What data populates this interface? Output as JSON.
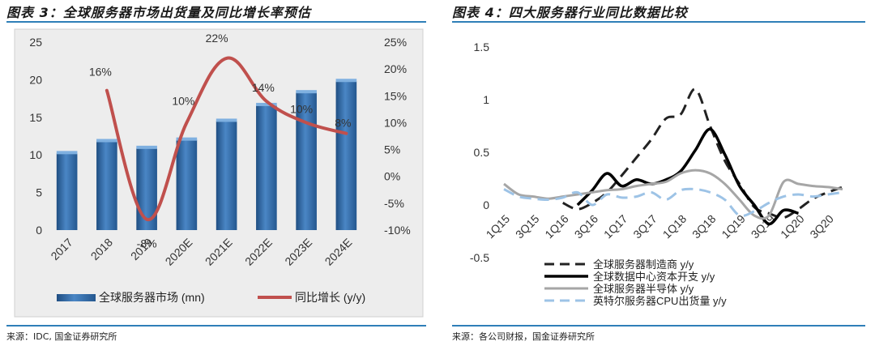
{
  "left": {
    "title": "图表 3：全球服务器市场出货量及同比增长率预估",
    "source": "来源：IDC, 国金证券研究所"
  },
  "right": {
    "title": "图表 4：四大服务器行业同比数据比较",
    "source": "来源：各公司财报，国金证券研究所"
  },
  "colors": {
    "bar": "#2d6aa3",
    "growth_line": "#c0504d",
    "rule": "#2f7fb8"
  },
  "chart_data": [
    {
      "type": "bar",
      "categories": [
        "2017",
        "2018",
        "2019",
        "2020E",
        "2021E",
        "2022E",
        "2023E",
        "2024E"
      ],
      "series": [
        {
          "name": "全球服务器市场 (mn)",
          "type": "bar",
          "axis": "left",
          "values": [
            10.2,
            11.8,
            10.9,
            12.0,
            14.5,
            16.6,
            18.3,
            19.8
          ]
        },
        {
          "name": "同比增长 (y/y)",
          "type": "line",
          "axis": "right",
          "values": [
            null,
            16,
            -8,
            10,
            22,
            14,
            10,
            8
          ]
        }
      ],
      "data_labels": [
        "",
        "16%",
        "-8%",
        "10%",
        "22%",
        "14%",
        "10%",
        "8%"
      ],
      "y_left": {
        "ylim": [
          0,
          25
        ],
        "ticks": [
          "0",
          "5",
          "10",
          "15",
          "20",
          "25"
        ]
      },
      "y_right": {
        "ylim": [
          -10,
          25
        ],
        "ticks": [
          "-10%",
          "-5%",
          "0%",
          "5%",
          "10%",
          "15%",
          "20%",
          "25%"
        ]
      },
      "grid": false,
      "legend": "bottom"
    },
    {
      "type": "line",
      "x_ticks": [
        "1Q15",
        "3Q15",
        "1Q16",
        "3Q16",
        "1Q17",
        "3Q17",
        "1Q18",
        "3Q18",
        "1Q19",
        "3Q19",
        "1Q20",
        "3Q20"
      ],
      "ylim": [
        -0.5,
        1.5
      ],
      "y_ticks": [
        "-0.5",
        "0",
        "0.5",
        "1",
        "1.5"
      ],
      "series": [
        {
          "name": "全球服务器制造商 y/y",
          "style": "dashed",
          "color": "#222222",
          "values": [
            null,
            null,
            null,
            null,
            0.02,
            -0.04,
            0.02,
            0.12,
            0.28,
            0.45,
            0.62,
            0.82,
            0.86,
            1.1,
            0.75,
            0.42,
            0.2,
            -0.02,
            -0.08,
            -0.12,
            -0.04,
            0.06,
            0.12,
            0.17
          ]
        },
        {
          "name": "全球数据中心资本开支 y/y",
          "style": "solid",
          "color": "#000000",
          "values": [
            null,
            null,
            null,
            null,
            null,
            0.0,
            0.14,
            0.3,
            0.18,
            0.24,
            0.2,
            0.24,
            0.32,
            0.52,
            0.72,
            0.48,
            0.18,
            0.0,
            -0.18,
            -0.05,
            -0.08,
            null,
            null,
            null
          ]
        },
        {
          "name": "全球服务器半导体 y/y",
          "style": "solid",
          "color": "#a6a6a6",
          "values": [
            0.2,
            0.1,
            0.08,
            0.06,
            0.08,
            0.1,
            0.12,
            0.14,
            0.15,
            0.18,
            0.2,
            0.22,
            0.3,
            0.33,
            0.3,
            0.2,
            0.05,
            -0.1,
            -0.1,
            0.22,
            0.2,
            0.18,
            0.17,
            0.15
          ]
        },
        {
          "name": "英特尔服务器CPU出货量 y/y",
          "style": "dashed",
          "color": "#9dc3e6",
          "values": [
            0.15,
            0.08,
            0.06,
            0.05,
            0.07,
            0.12,
            0.0,
            0.1,
            0.07,
            0.08,
            0.12,
            0.05,
            0.14,
            0.15,
            0.12,
            0.05,
            -0.1,
            -0.06,
            0.02,
            0.08,
            0.1,
            0.08,
            0.1,
            0.12
          ]
        }
      ],
      "grid": false,
      "legend": "bottom"
    }
  ]
}
